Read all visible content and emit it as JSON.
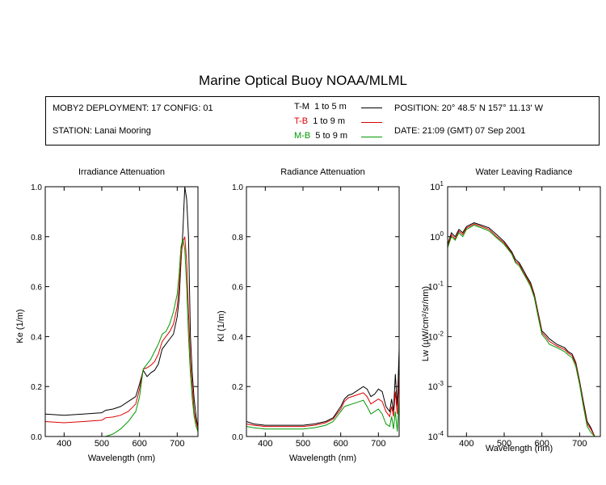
{
  "title": "Marine Optical Buoy NOAA/MLML",
  "info": {
    "deployment": "MOBY2 DEPLOYMENT: 17 CONFIG: 01",
    "station": "STATION: Lanai Mooring",
    "position": "POSITION: 20° 48.5' N   157° 11.13' W",
    "date": "DATE: 21:09 (GMT) 07 Sep 2001",
    "legend": [
      {
        "code": "T-M",
        "range": "1 to 5  m",
        "color": "#000000"
      },
      {
        "code": "T-B",
        "range": "1 to 9  m",
        "color": "#dd0000"
      },
      {
        "code": "M-B",
        "range": "5 to 9  m",
        "color": "#009900"
      }
    ]
  },
  "chart_data": [
    {
      "type": "line",
      "title": "Irradiance Attenuation",
      "xlabel": "Wavelength (nm)",
      "ylabel": "Ke  (1/m)",
      "xlim": [
        350,
        755
      ],
      "ylim": [
        0,
        1.0
      ],
      "xticks": [
        "400",
        "500",
        "600",
        "700"
      ],
      "yticks": [
        "0.0",
        "0.2",
        "0.4",
        "0.6",
        "0.8",
        "1.0"
      ],
      "series": [
        {
          "name": "T-M",
          "color": "#000000",
          "x": [
            350,
            400,
            450,
            500,
            510,
            530,
            550,
            570,
            590,
            600,
            610,
            620,
            630,
            640,
            650,
            660,
            670,
            680,
            690,
            700,
            705,
            710,
            715,
            720,
            725,
            730,
            735,
            740,
            745,
            750,
            755
          ],
          "y": [
            0.09,
            0.085,
            0.09,
            0.095,
            0.105,
            0.11,
            0.12,
            0.14,
            0.16,
            0.21,
            0.265,
            0.24,
            0.255,
            0.265,
            0.29,
            0.35,
            0.37,
            0.39,
            0.41,
            0.48,
            0.55,
            0.7,
            0.82,
            1.0,
            0.95,
            0.8,
            0.4,
            0.25,
            0.15,
            0.08,
            0.03
          ]
        },
        {
          "name": "T-B",
          "color": "#dd0000",
          "x": [
            350,
            400,
            450,
            500,
            510,
            530,
            550,
            570,
            590,
            600,
            610,
            620,
            630,
            640,
            650,
            660,
            670,
            680,
            690,
            700,
            705,
            710,
            715,
            720,
            725,
            730,
            735,
            740,
            745,
            750,
            755
          ],
          "y": [
            0.06,
            0.055,
            0.06,
            0.065,
            0.075,
            0.078,
            0.085,
            0.1,
            0.13,
            0.19,
            0.27,
            0.275,
            0.285,
            0.3,
            0.33,
            0.38,
            0.4,
            0.42,
            0.45,
            0.52,
            0.6,
            0.72,
            0.78,
            0.8,
            0.7,
            0.5,
            0.3,
            0.2,
            0.1,
            0.06,
            0.03
          ]
        },
        {
          "name": "M-B",
          "color": "#009900",
          "x": [
            350,
            400,
            450,
            500,
            510,
            530,
            550,
            570,
            590,
            600,
            610,
            620,
            630,
            640,
            650,
            660,
            670,
            680,
            690,
            700,
            705,
            710,
            715,
            720,
            725,
            730,
            735,
            740,
            745,
            750,
            755
          ],
          "y": [
            0.0,
            0.0,
            0.0,
            0.0,
            0.0,
            0.01,
            0.03,
            0.06,
            0.1,
            0.16,
            0.27,
            0.29,
            0.31,
            0.34,
            0.37,
            0.41,
            0.42,
            0.45,
            0.5,
            0.57,
            0.65,
            0.76,
            0.79,
            0.75,
            0.6,
            0.4,
            0.25,
            0.15,
            0.08,
            0.04,
            0.02
          ]
        }
      ]
    },
    {
      "type": "line",
      "title": "Radiance Attenuation",
      "xlabel": "Wavelength (nm)",
      "ylabel": "Kl  (1/m)",
      "xlim": [
        350,
        755
      ],
      "ylim": [
        0,
        1.0
      ],
      "xticks": [
        "400",
        "500",
        "600",
        "700"
      ],
      "yticks": [
        "0.0",
        "0.2",
        "0.4",
        "0.6",
        "0.8",
        "1.0"
      ],
      "series": [
        {
          "name": "T-M",
          "color": "#000000",
          "x": [
            350,
            370,
            400,
            450,
            500,
            530,
            560,
            580,
            600,
            610,
            620,
            630,
            640,
            650,
            660,
            670,
            680,
            690,
            700,
            710,
            720,
            730,
            735,
            740,
            745,
            750,
            755
          ],
          "y": [
            0.06,
            0.05,
            0.045,
            0.045,
            0.045,
            0.05,
            0.06,
            0.075,
            0.12,
            0.15,
            0.165,
            0.17,
            0.18,
            0.19,
            0.2,
            0.19,
            0.16,
            0.17,
            0.19,
            0.18,
            0.12,
            0.1,
            0.15,
            0.1,
            0.25,
            0.12,
            0.35
          ]
        },
        {
          "name": "T-B",
          "color": "#dd0000",
          "x": [
            350,
            370,
            400,
            450,
            500,
            530,
            560,
            580,
            600,
            610,
            620,
            630,
            640,
            650,
            660,
            670,
            680,
            690,
            700,
            710,
            720,
            730,
            735,
            740,
            745,
            750,
            755
          ],
          "y": [
            0.05,
            0.045,
            0.04,
            0.04,
            0.04,
            0.045,
            0.055,
            0.07,
            0.11,
            0.14,
            0.155,
            0.16,
            0.165,
            0.17,
            0.175,
            0.16,
            0.13,
            0.14,
            0.15,
            0.14,
            0.1,
            0.08,
            0.12,
            0.08,
            0.18,
            0.09,
            0.25
          ]
        },
        {
          "name": "M-B",
          "color": "#009900",
          "x": [
            350,
            370,
            400,
            450,
            500,
            530,
            560,
            580,
            600,
            610,
            620,
            630,
            640,
            650,
            660,
            670,
            680,
            690,
            700,
            710,
            720,
            730,
            735,
            740,
            745,
            750,
            755
          ],
          "y": [
            0.04,
            0.035,
            0.03,
            0.03,
            0.03,
            0.035,
            0.045,
            0.06,
            0.1,
            0.12,
            0.125,
            0.13,
            0.135,
            0.14,
            0.145,
            0.12,
            0.09,
            0.1,
            0.11,
            0.09,
            0.05,
            0.04,
            0.08,
            0.03,
            0.1,
            0.02,
            0.15
          ]
        }
      ]
    },
    {
      "type": "line",
      "title": "Water Leaving Radiance",
      "xlabel": "Wavelength (nm)",
      "ylabel": "Lw  (µW/cm²/sr/nm)",
      "xlim": [
        350,
        755
      ],
      "ylim": [
        0.0001,
        10
      ],
      "yscale": "log",
      "xticks": [
        "400",
        "500",
        "600",
        "700"
      ],
      "yticks": [
        "10^-4",
        "10^-3",
        "10^-2",
        "10^-1",
        "10^0",
        "10^1"
      ],
      "series": [
        {
          "name": "T-M",
          "color": "#000000",
          "x": [
            350,
            360,
            370,
            380,
            390,
            400,
            420,
            440,
            460,
            480,
            500,
            520,
            530,
            540,
            550,
            560,
            570,
            580,
            590,
            600,
            610,
            620,
            640,
            660,
            670,
            680,
            690,
            700,
            710,
            720,
            730,
            740,
            750
          ],
          "y": [
            0.7,
            1.2,
            1.0,
            1.4,
            1.2,
            1.6,
            1.9,
            1.7,
            1.5,
            1.1,
            0.8,
            0.5,
            0.35,
            0.3,
            0.22,
            0.16,
            0.12,
            0.07,
            0.03,
            0.013,
            0.011,
            0.009,
            0.007,
            0.006,
            0.005,
            0.0045,
            0.003,
            0.0013,
            0.0005,
            0.0002,
            0.00015,
            0.0001,
            0.0001
          ]
        },
        {
          "name": "T-B",
          "color": "#dd0000",
          "x": [
            350,
            360,
            370,
            380,
            390,
            400,
            420,
            440,
            460,
            480,
            500,
            520,
            530,
            540,
            550,
            560,
            570,
            580,
            590,
            600,
            610,
            620,
            640,
            660,
            670,
            680,
            690,
            700,
            710,
            720,
            730,
            740,
            750
          ],
          "y": [
            0.65,
            1.1,
            0.9,
            1.3,
            1.1,
            1.5,
            1.8,
            1.6,
            1.4,
            1.0,
            0.75,
            0.47,
            0.32,
            0.28,
            0.2,
            0.15,
            0.11,
            0.065,
            0.028,
            0.012,
            0.01,
            0.008,
            0.0065,
            0.0055,
            0.0047,
            0.0042,
            0.0028,
            0.0012,
            0.00045,
            0.00018,
            0.00014,
            0.0001,
            0.0001
          ]
        },
        {
          "name": "M-B",
          "color": "#009900",
          "x": [
            350,
            360,
            370,
            380,
            390,
            400,
            420,
            440,
            460,
            480,
            500,
            520,
            530,
            540,
            550,
            560,
            570,
            580,
            590,
            600,
            610,
            620,
            640,
            660,
            670,
            680,
            690,
            700,
            710,
            720,
            730,
            740,
            750
          ],
          "y": [
            0.6,
            1.0,
            0.85,
            1.2,
            1.0,
            1.4,
            1.7,
            1.5,
            1.3,
            0.95,
            0.7,
            0.45,
            0.3,
            0.26,
            0.19,
            0.14,
            0.1,
            0.06,
            0.025,
            0.011,
            0.009,
            0.007,
            0.006,
            0.005,
            0.0043,
            0.0038,
            0.0025,
            0.0011,
            0.0004,
            0.00016,
            0.00012,
            0.0001,
            0.0001
          ]
        }
      ]
    }
  ]
}
